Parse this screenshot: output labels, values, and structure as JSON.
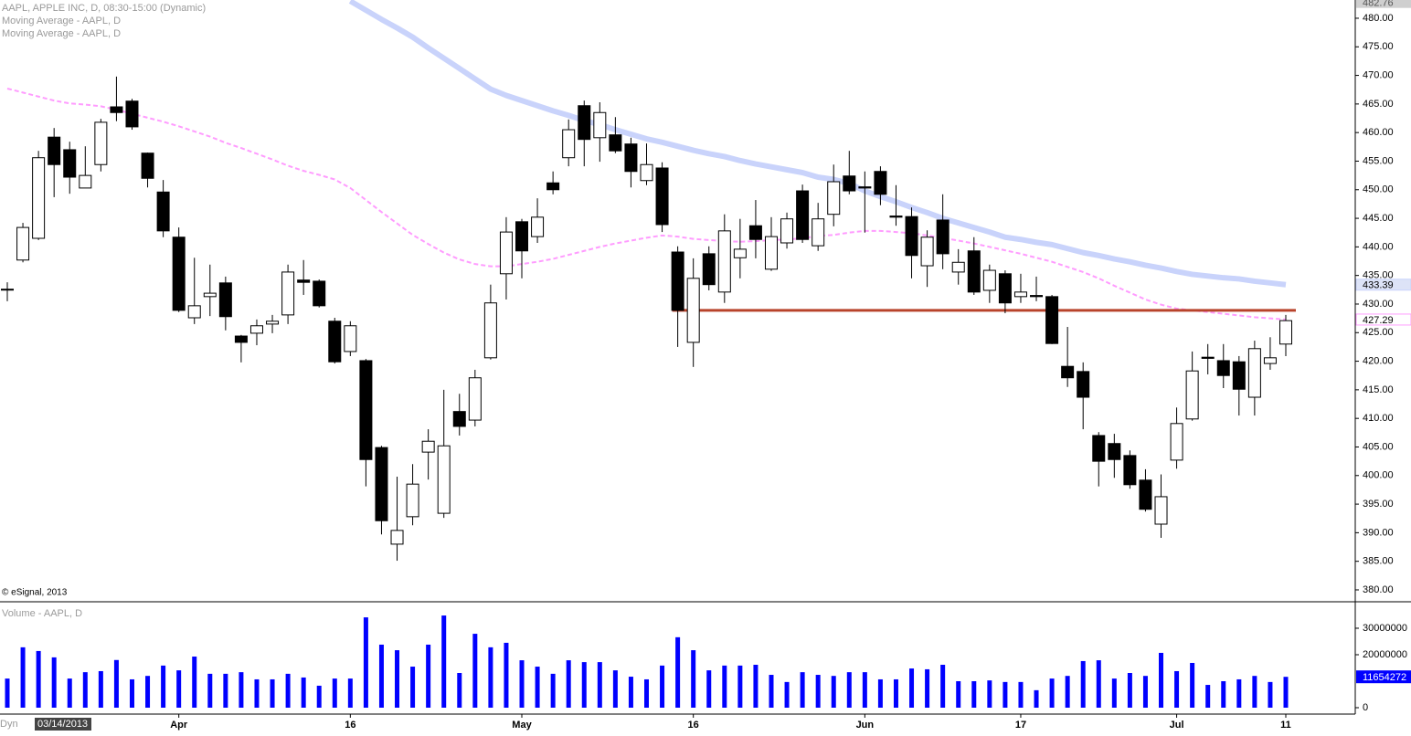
{
  "chart_data": [
    {
      "type": "candlestick",
      "title": "AAPL, APPLE INC, D, 08:30-15:00 (Dynamic)",
      "copyright": "© eSignal, 2013",
      "categories": [
        null,
        null,
        null,
        null,
        null,
        null,
        null,
        null,
        null,
        null,
        null,
        "Apr",
        null,
        null,
        null,
        null,
        null,
        null,
        null,
        null,
        null,
        null,
        "16",
        null,
        null,
        null,
        null,
        null,
        null,
        null,
        null,
        null,
        null,
        "May",
        null,
        null,
        null,
        null,
        null,
        null,
        null,
        null,
        null,
        null,
        "16",
        null,
        null,
        null,
        null,
        null,
        null,
        null,
        null,
        null,
        null,
        "Jun",
        null,
        null,
        null,
        null,
        null,
        null,
        null,
        null,
        null,
        "17",
        null,
        null,
        null,
        null,
        null,
        null,
        null,
        null,
        null,
        "Jul",
        null,
        null,
        null,
        null,
        null,
        null,
        "11"
      ],
      "open": [
        432.6,
        437.7,
        441.5,
        459.2,
        457.0,
        450.3,
        454.4,
        464.5,
        465.5,
        456.4,
        449.6,
        441.7,
        427.6,
        431.3,
        433.7,
        424.4,
        424.9,
        426.5,
        428.1,
        434.2,
        434.0,
        427.0,
        421.7,
        420.1,
        404.9,
        388.0,
        392.8,
        404.1,
        393.4,
        411.2,
        409.7,
        420.6,
        435.3,
        444.4,
        441.8,
        451.2,
        455.6,
        464.7,
        459.1,
        459.6,
        458.0,
        451.6,
        453.8,
        439.1,
        423.3,
        438.8,
        432.1,
        438.1,
        443.7,
        436.1,
        440.7,
        449.8,
        440.2,
        445.7,
        452.4,
        450.5,
        453.2,
        445.4,
        445.3,
        436.7,
        444.7,
        435.6,
        439.3,
        432.4,
        435.3,
        431.3,
        431.5,
        431.3,
        419.1,
        418.2,
        407.0,
        405.6,
        403.5,
        399.2,
        391.5,
        402.7,
        409.9,
        420.7,
        420.1,
        419.9,
        413.7,
        419.6,
        423.0
      ],
      "high": [
        433.8,
        444.2,
        456.8,
        460.8,
        458.4,
        457.6,
        462.4,
        469.8,
        465.9,
        456.5,
        451.7,
        443.4,
        438.1,
        436.9,
        434.8,
        424.6,
        427.3,
        428.1,
        436.9,
        437.7,
        434.3,
        427.6,
        427.0,
        420.4,
        405.2,
        399.8,
        402.0,
        408.1,
        415.0,
        414.3,
        418.5,
        433.4,
        445.2,
        444.9,
        448.5,
        453.2,
        462.3,
        465.6,
        465.3,
        462.7,
        459.1,
        458.1,
        454.8,
        440.1,
        438.0,
        440.1,
        445.7,
        444.9,
        448.2,
        445.2,
        446.0,
        450.9,
        447.7,
        454.4,
        456.8,
        453.2,
        454.1,
        450.8,
        446.9,
        442.9,
        449.2,
        439.6,
        441.7,
        436.9,
        435.9,
        435.3,
        434.8,
        431.6,
        426.0,
        419.8,
        407.6,
        407.3,
        404.4,
        401.1,
        400.2,
        411.9,
        421.7,
        423.0,
        423.0,
        420.9,
        423.6,
        424.2,
        428.1
      ],
      "low": [
        430.5,
        437.3,
        441.2,
        448.7,
        449.3,
        450.3,
        453.2,
        462.0,
        460.5,
        450.4,
        441.7,
        428.6,
        426.5,
        427.9,
        425.4,
        419.8,
        422.8,
        424.9,
        426.5,
        431.6,
        429.4,
        419.6,
        420.9,
        398.1,
        389.7,
        385.1,
        391.3,
        399.3,
        392.6,
        407.0,
        408.6,
        420.3,
        430.8,
        434.5,
        440.7,
        449.2,
        454.1,
        454.1,
        454.9,
        456.4,
        450.4,
        450.8,
        442.6,
        422.5,
        419.0,
        432.4,
        430.2,
        434.5,
        438.0,
        435.8,
        439.7,
        440.7,
        439.3,
        443.6,
        449.2,
        442.5,
        447.3,
        443.7,
        434.5,
        433.0,
        436.1,
        433.4,
        431.6,
        430.2,
        428.4,
        430.2,
        430.5,
        423.0,
        415.5,
        408.1,
        398.1,
        399.6,
        397.7,
        393.7,
        389.1,
        401.2,
        409.6,
        417.7,
        415.3,
        410.5,
        410.5,
        418.5,
        420.9
      ],
      "close": [
        432.6,
        443.4,
        455.6,
        454.4,
        452.2,
        452.5,
        461.8,
        463.5,
        461.0,
        452.0,
        442.8,
        428.9,
        429.7,
        431.9,
        427.8,
        423.3,
        426.2,
        427.0,
        435.6,
        433.8,
        429.7,
        419.9,
        426.2,
        402.8,
        392.1,
        390.4,
        398.5,
        406.0,
        405.2,
        408.6,
        417.1,
        430.2,
        442.6,
        439.3,
        445.2,
        450.0,
        460.5,
        458.8,
        463.5,
        456.8,
        453.2,
        454.4,
        443.9,
        428.9,
        434.5,
        433.4,
        442.8,
        439.6,
        441.3,
        441.8,
        444.9,
        441.3,
        444.9,
        451.4,
        449.8,
        450.3,
        449.2,
        445.2,
        438.5,
        441.7,
        438.8,
        437.3,
        432.1,
        435.9,
        430.2,
        432.1,
        431.3,
        423.1,
        417.1,
        413.7,
        402.5,
        402.8,
        398.4,
        394.1,
        396.3,
        409.1,
        418.3,
        420.5,
        417.5,
        415.1,
        422.2,
        420.6,
        427.1
      ],
      "up_color": "#ffffff",
      "down_color": "#000000",
      "series": [
        {
          "name": "Moving Average - AAPL, D",
          "color": "#ff9cff",
          "values": [
            467.7,
            467.0,
            466.3,
            465.6,
            465.1,
            464.9,
            464.6,
            464.0,
            463.3,
            462.6,
            461.9,
            461.1,
            460.2,
            459.3,
            458.2,
            457.3,
            456.3,
            455.3,
            454.2,
            453.3,
            452.6,
            451.8,
            450.3,
            448.2,
            446.1,
            444.1,
            442.1,
            440.5,
            439.0,
            437.8,
            437.0,
            436.6,
            436.6,
            437.0,
            437.4,
            437.9,
            438.6,
            439.3,
            440.0,
            440.6,
            441.1,
            441.6,
            442.0,
            441.8,
            441.4,
            441.2,
            441.0,
            440.9,
            441.0,
            441.2,
            441.3,
            441.5,
            441.9,
            442.1,
            442.5,
            442.8,
            442.8,
            442.6,
            442.4,
            442.0,
            441.6,
            441.1,
            440.6,
            440.0,
            439.4,
            438.8,
            438.1,
            437.4,
            436.5,
            435.6,
            434.5,
            433.2,
            432.0,
            430.8,
            429.9,
            429.2,
            428.9,
            428.6,
            428.3,
            428.0,
            427.7,
            427.5,
            427.29
          ]
        },
        {
          "name": "Moving Average - AAPL, D",
          "color": "#c9d3fb",
          "values": [
            null,
            null,
            null,
            null,
            null,
            null,
            null,
            null,
            null,
            null,
            null,
            null,
            null,
            null,
            null,
            null,
            null,
            null,
            null,
            null,
            null,
            null,
            483.0,
            481.4,
            479.8,
            478.3,
            476.7,
            474.8,
            473.0,
            471.2,
            469.4,
            467.6,
            466.5,
            465.6,
            464.7,
            463.8,
            463.0,
            462.1,
            461.4,
            460.5,
            459.7,
            458.9,
            458.3,
            457.6,
            456.9,
            456.3,
            455.8,
            455.1,
            454.5,
            454.0,
            453.5,
            453.0,
            452.2,
            451.8,
            451.1,
            449.8,
            448.8,
            447.9,
            446.9,
            446.0,
            445.0,
            444.2,
            443.4,
            442.6,
            441.7,
            441.3,
            440.8,
            440.4,
            439.7,
            439.0,
            438.5,
            437.9,
            437.4,
            436.8,
            436.3,
            435.7,
            435.2,
            434.9,
            434.6,
            434.4,
            434.0,
            433.7,
            433.39
          ]
        }
      ],
      "hline": {
        "value": 428.9,
        "color": "#b8432b"
      },
      "top_marker": {
        "value": 482.76,
        "label": "482.76"
      },
      "ylim": [
        378.08,
        483.19
      ],
      "yticks": [
        {
          "value": 380,
          "label": "380.00"
        },
        {
          "value": 385,
          "label": "385.00"
        },
        {
          "value": 390,
          "label": "390.00"
        },
        {
          "value": 395,
          "label": "395.00"
        },
        {
          "value": 400,
          "label": "400.00"
        },
        {
          "value": 405,
          "label": "405.00"
        },
        {
          "value": 410,
          "label": "410.00"
        },
        {
          "value": 415,
          "label": "415.00"
        },
        {
          "value": 420,
          "label": "420.00"
        },
        {
          "value": 425,
          "label": "425.00"
        },
        {
          "value": 430,
          "label": "430.00"
        },
        {
          "value": 435,
          "label": "435.00"
        },
        {
          "value": 440,
          "label": "440.00"
        },
        {
          "value": 445,
          "label": "445.00"
        },
        {
          "value": 450,
          "label": "450.00"
        },
        {
          "value": 455,
          "label": "455.00"
        },
        {
          "value": 460,
          "label": "460.00"
        },
        {
          "value": 465,
          "label": "465.00"
        },
        {
          "value": 470,
          "label": "470.00"
        },
        {
          "value": 475,
          "label": "475.00"
        },
        {
          "value": 480,
          "label": "480.00"
        }
      ]
    },
    {
      "type": "bar",
      "title": "Volume - AAPL, D",
      "color": "#0000ff",
      "values": [
        11000000,
        22800000,
        21400000,
        19000000,
        11000000,
        13400000,
        13800000,
        18000000,
        10700000,
        12000000,
        15900000,
        14100000,
        19300000,
        12800000,
        12800000,
        13400000,
        10700000,
        10700000,
        12800000,
        11400000,
        8300000,
        11000000,
        11000000,
        34100000,
        23800000,
        21700000,
        15500000,
        23800000,
        34800000,
        13100000,
        27900000,
        22800000,
        24500000,
        17900000,
        15500000,
        12800000,
        17900000,
        17200000,
        17200000,
        14100000,
        11700000,
        10700000,
        15900000,
        26600000,
        21700000,
        14100000,
        15900000,
        15900000,
        16200000,
        12400000,
        9700000,
        13400000,
        12400000,
        12000000,
        13400000,
        13400000,
        10700000,
        10700000,
        14800000,
        14500000,
        16200000,
        10000000,
        10000000,
        10300000,
        9700000,
        9700000,
        6600000,
        11000000,
        12000000,
        17600000,
        17900000,
        11000000,
        13100000,
        12000000,
        20700000,
        13800000,
        16900000,
        8600000,
        10000000,
        10700000,
        12000000,
        9700000,
        11654272
      ],
      "ylim": [
        0,
        39300000
      ],
      "yticks": [
        0,
        20000000,
        30000000
      ]
    }
  ],
  "footer": {
    "mode": "Dyn",
    "date": "03/14/2013"
  }
}
